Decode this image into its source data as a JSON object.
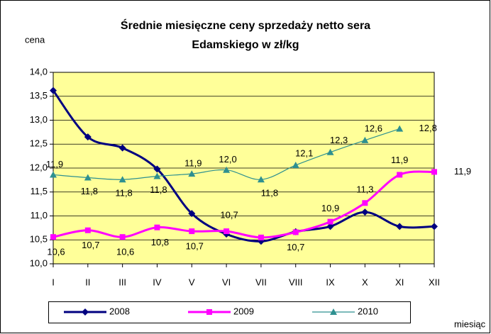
{
  "chart_data": {
    "type": "line",
    "title": [
      "Średnie miesięczne ceny sprzedaży netto sera",
      "Edamskiego w zł/kg"
    ],
    "y_label": "cena",
    "x_label": "miesiąc",
    "categories": [
      "I",
      "II",
      "III",
      "IV",
      "V",
      "VI",
      "VII",
      "VIII",
      "IX",
      "X",
      "XI",
      "XII"
    ],
    "series": [
      {
        "name": "2008",
        "color": "#000080",
        "marker": "diamond",
        "values": [
          13.62,
          12.65,
          12.42,
          11.98,
          11.05,
          10.62,
          10.47,
          10.67,
          10.78,
          11.08,
          10.78,
          10.78
        ]
      },
      {
        "name": "2009",
        "color": "#ff00ff",
        "marker": "square",
        "values": [
          10.56,
          10.7,
          10.56,
          10.76,
          10.68,
          10.68,
          10.55,
          10.66,
          10.88,
          11.27,
          11.86,
          11.92
        ],
        "value_labels": [
          "10,6",
          "10,7",
          "10,6",
          "10,8",
          "10,7",
          "10,7",
          null,
          "10,7",
          "10,9",
          "11,3",
          "11,9",
          "11,9"
        ]
      },
      {
        "name": "2010",
        "color": "#2e9090",
        "marker": "triangle",
        "values": [
          11.86,
          11.8,
          11.76,
          11.83,
          11.88,
          11.96,
          11.76,
          12.06,
          12.33,
          12.58,
          12.82,
          null
        ],
        "value_labels": [
          "11,9",
          "11,8",
          "11,8",
          "11,8",
          "11,9",
          "12,0",
          "11,8",
          "12,1",
          "12,3",
          "12,6",
          "12,8",
          null
        ]
      }
    ],
    "ylim": [
      10,
      14
    ],
    "yticks": [
      {
        "value": 10,
        "label": "10,0"
      },
      {
        "value": 10.5,
        "label": "10,5"
      },
      {
        "value": 11,
        "label": "11,0"
      },
      {
        "value": 11.5,
        "label": "11,5"
      },
      {
        "value": 12,
        "label": "12,0"
      },
      {
        "value": 12.5,
        "label": "12,5"
      },
      {
        "value": 13,
        "label": "13,0"
      },
      {
        "value": 13.5,
        "label": "13,5"
      },
      {
        "value": 14,
        "label": "14,0"
      }
    ],
    "grid": true,
    "plot_background": "#ffff99",
    "legend": "bottom"
  }
}
